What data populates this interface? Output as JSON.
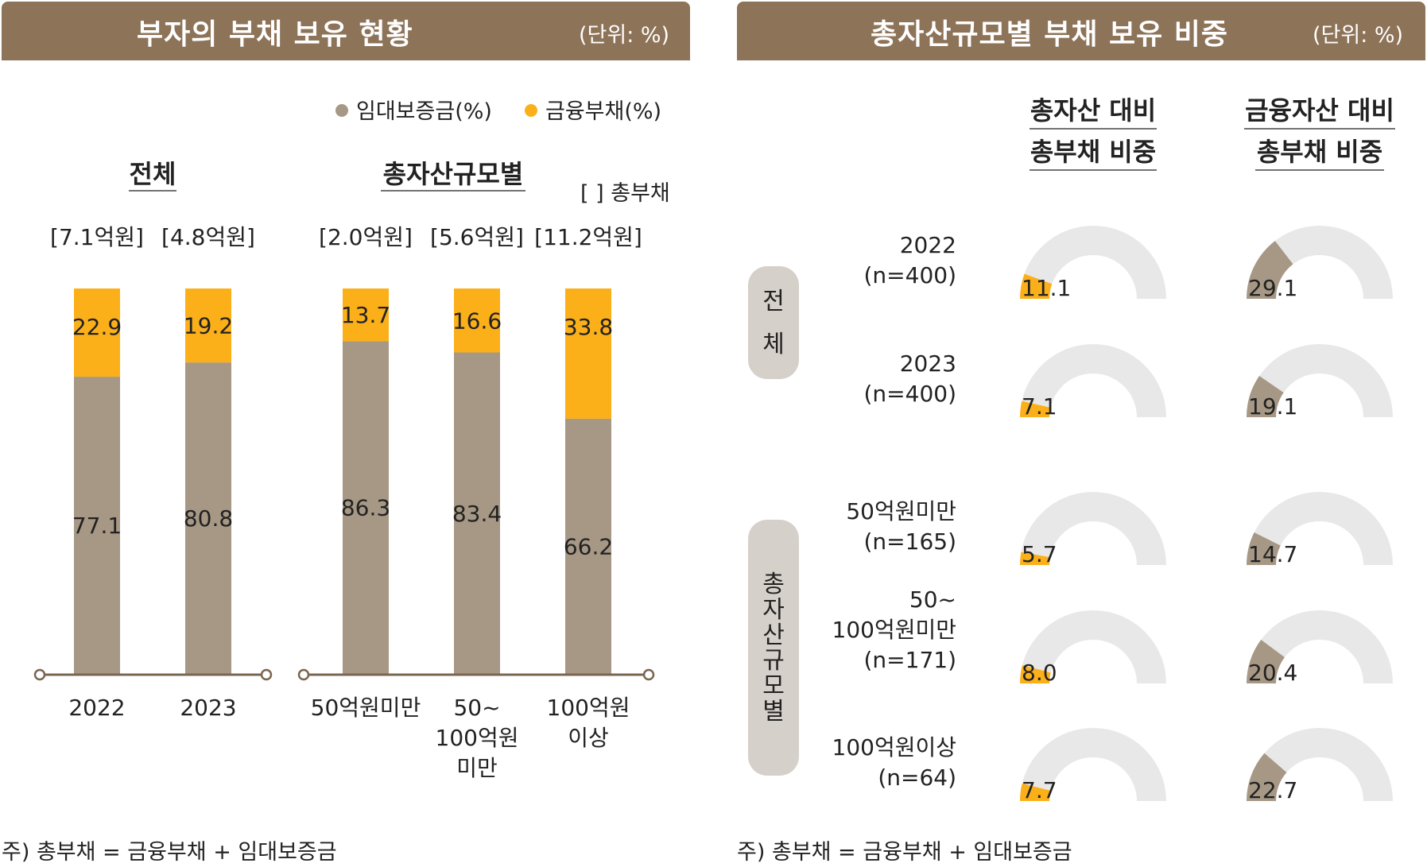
{
  "left_panel": {
    "title": "부자의 부채 보유 현황",
    "unit": "(단위: %)",
    "legend": [
      {
        "label": "임대보증금(%)",
        "color": "#a69885"
      },
      {
        "label": "금융부채(%)",
        "color": "#fbb01a"
      }
    ],
    "group_labels": [
      "전체",
      "총자산규모별"
    ],
    "bracket_note": "[ ] 총부채",
    "footnote": "주) 총부채 = 금융부채 + 임대보증금"
  },
  "right_panel": {
    "title": "총자산규모별 부채 보유 비중",
    "unit": "(단위: %)",
    "col_headers": [
      [
        "총자산 대비",
        "총부채 비중"
      ],
      [
        "금융자산 대비",
        "총부채 비중"
      ]
    ],
    "side_labels": [
      [
        "전",
        "체"
      ],
      [
        "총",
        "자",
        "산",
        "규",
        "모",
        "별"
      ]
    ],
    "footnote": "주) 총부채 = 금융부채 + 임대보증금"
  },
  "chart_data": [
    {
      "type": "bar",
      "stacked": true,
      "categories": [
        [
          "2022"
        ],
        [
          "2023"
        ],
        [
          "50억원미만"
        ],
        [
          "50~",
          "100억원",
          "미만"
        ],
        [
          "100억원",
          "이상"
        ]
      ],
      "totals": [
        "[7.1억원]",
        "[4.8억원]",
        "[2.0억원]",
        "[5.6억원]",
        "[11.2억원]"
      ],
      "series": [
        {
          "name": "임대보증금(%)",
          "color": "#a69885",
          "values": [
            77.1,
            80.8,
            86.3,
            83.4,
            66.2
          ]
        },
        {
          "name": "금융부채(%)",
          "color": "#fbb01a",
          "values": [
            22.9,
            19.2,
            13.7,
            16.6,
            33.8
          ]
        }
      ],
      "ylim": [
        0,
        100
      ]
    },
    {
      "type": "pie",
      "semicircle": true,
      "rows": [
        {
          "label": [
            "2022",
            "(n=400)"
          ],
          "total_assets": 11.1,
          "financial_assets": 29.1
        },
        {
          "label": [
            "2023",
            "(n=400)"
          ],
          "total_assets": 7.1,
          "financial_assets": 19.1
        },
        {
          "label": [
            "50억원미만",
            "(n=165)"
          ],
          "total_assets": 5.7,
          "financial_assets": 14.7
        },
        {
          "label": [
            "50~",
            "100억원미만",
            "(n=171)"
          ],
          "total_assets": 8.0,
          "financial_assets": 20.4
        },
        {
          "label": [
            "100억원이상",
            "(n=64)"
          ],
          "total_assets": 7.7,
          "financial_assets": 22.7
        }
      ],
      "colors": {
        "total_assets": "#fbb01a",
        "financial_assets": "#a69885",
        "rest": "#e8e8e8"
      }
    }
  ]
}
